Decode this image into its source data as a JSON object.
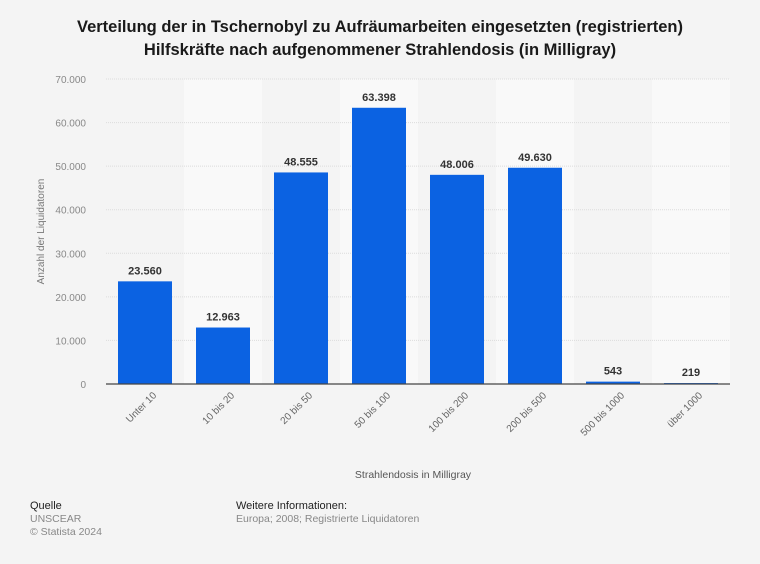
{
  "title_lines": [
    "Verteilung der in Tschernobyl zu Aufräumarbeiten eingesetzten (registrierten)",
    "Hilfskräfte nach aufgenommener Strahlendosis (in Milligray)"
  ],
  "colors": {
    "bar": "#0b62e2",
    "band": "#f9f9f9",
    "grid": "#dcdcdc",
    "axis": "#444444"
  },
  "chart_data": {
    "type": "bar",
    "title": "Verteilung der in Tschernobyl zu Aufräumarbeiten eingesetzten (registrierten) Hilfskräfte nach aufgenommener Strahlendosis (in Milligray)",
    "categories": [
      "Unter 10",
      "10 bis 20",
      "20 bis 50",
      "50 bis 100",
      "100 bis 200",
      "200 bis 500",
      "500 bis 1000",
      "über 1000"
    ],
    "values": [
      23560,
      12963,
      48555,
      63398,
      48006,
      49630,
      543,
      219
    ],
    "value_labels": [
      "23.560",
      "12.963",
      "48.555",
      "63.398",
      "48.006",
      "49.630",
      "543",
      "219"
    ],
    "xlabel": "Strahlendosis in Milligray",
    "ylabel": "Anzahl der Liquidatoren",
    "ylim": [
      0,
      70000
    ],
    "yticks": [
      0,
      10000,
      20000,
      30000,
      40000,
      50000,
      60000,
      70000
    ],
    "ytick_labels": [
      "0",
      "10.000",
      "20.000",
      "30.000",
      "40.000",
      "50.000",
      "60.000",
      "70.000"
    ],
    "grid": true,
    "legend": "none"
  },
  "footer": {
    "source_heading": "Quelle",
    "source": "UNSCEAR",
    "copyright": "© Statista 2024",
    "info_heading": "Weitere Informationen:",
    "info": "Europa; 2008; Registrierte Liquidatoren"
  }
}
